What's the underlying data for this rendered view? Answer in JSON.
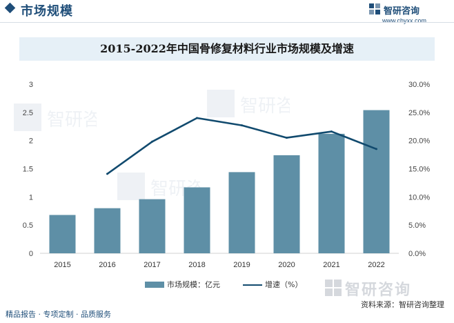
{
  "header": {
    "title": "市场规模",
    "brand_name": "智研咨询",
    "brand_url": "www.chyxx.com"
  },
  "watermark_text": "智研咨询",
  "chart_data": {
    "type": "bar",
    "title": "2015-2022年中国骨修复材料行业市场规模及增速",
    "categories": [
      "2015",
      "2016",
      "2017",
      "2018",
      "2019",
      "2020",
      "2021",
      "2022"
    ],
    "series": [
      {
        "name": "市场规模：亿元",
        "type": "bar",
        "axis": "left",
        "color": "#5e8fa6",
        "values": [
          0.68,
          0.8,
          0.96,
          1.17,
          1.44,
          1.74,
          2.12,
          2.54
        ]
      },
      {
        "name": "增速（%）",
        "type": "line",
        "axis": "right",
        "color": "#114a6e",
        "values": [
          null,
          14.1,
          19.8,
          24.0,
          22.7,
          20.5,
          21.6,
          18.5
        ]
      }
    ],
    "y_left": {
      "min": 0,
      "max": 3,
      "ticks": [
        "0",
        "0.5",
        "1",
        "1.5",
        "2",
        "2.5",
        "3"
      ]
    },
    "y_right": {
      "min": 0,
      "max": 30,
      "ticks": [
        "0.0%",
        "5.0%",
        "10.0%",
        "15.0%",
        "20.0%",
        "25.0%",
        "30.0%"
      ]
    },
    "grid": false,
    "legend_position": "bottom"
  },
  "footer": {
    "left": "精品报告 · 专项定制 · 品质服务",
    "right": "资料来源：智研咨询整理"
  }
}
